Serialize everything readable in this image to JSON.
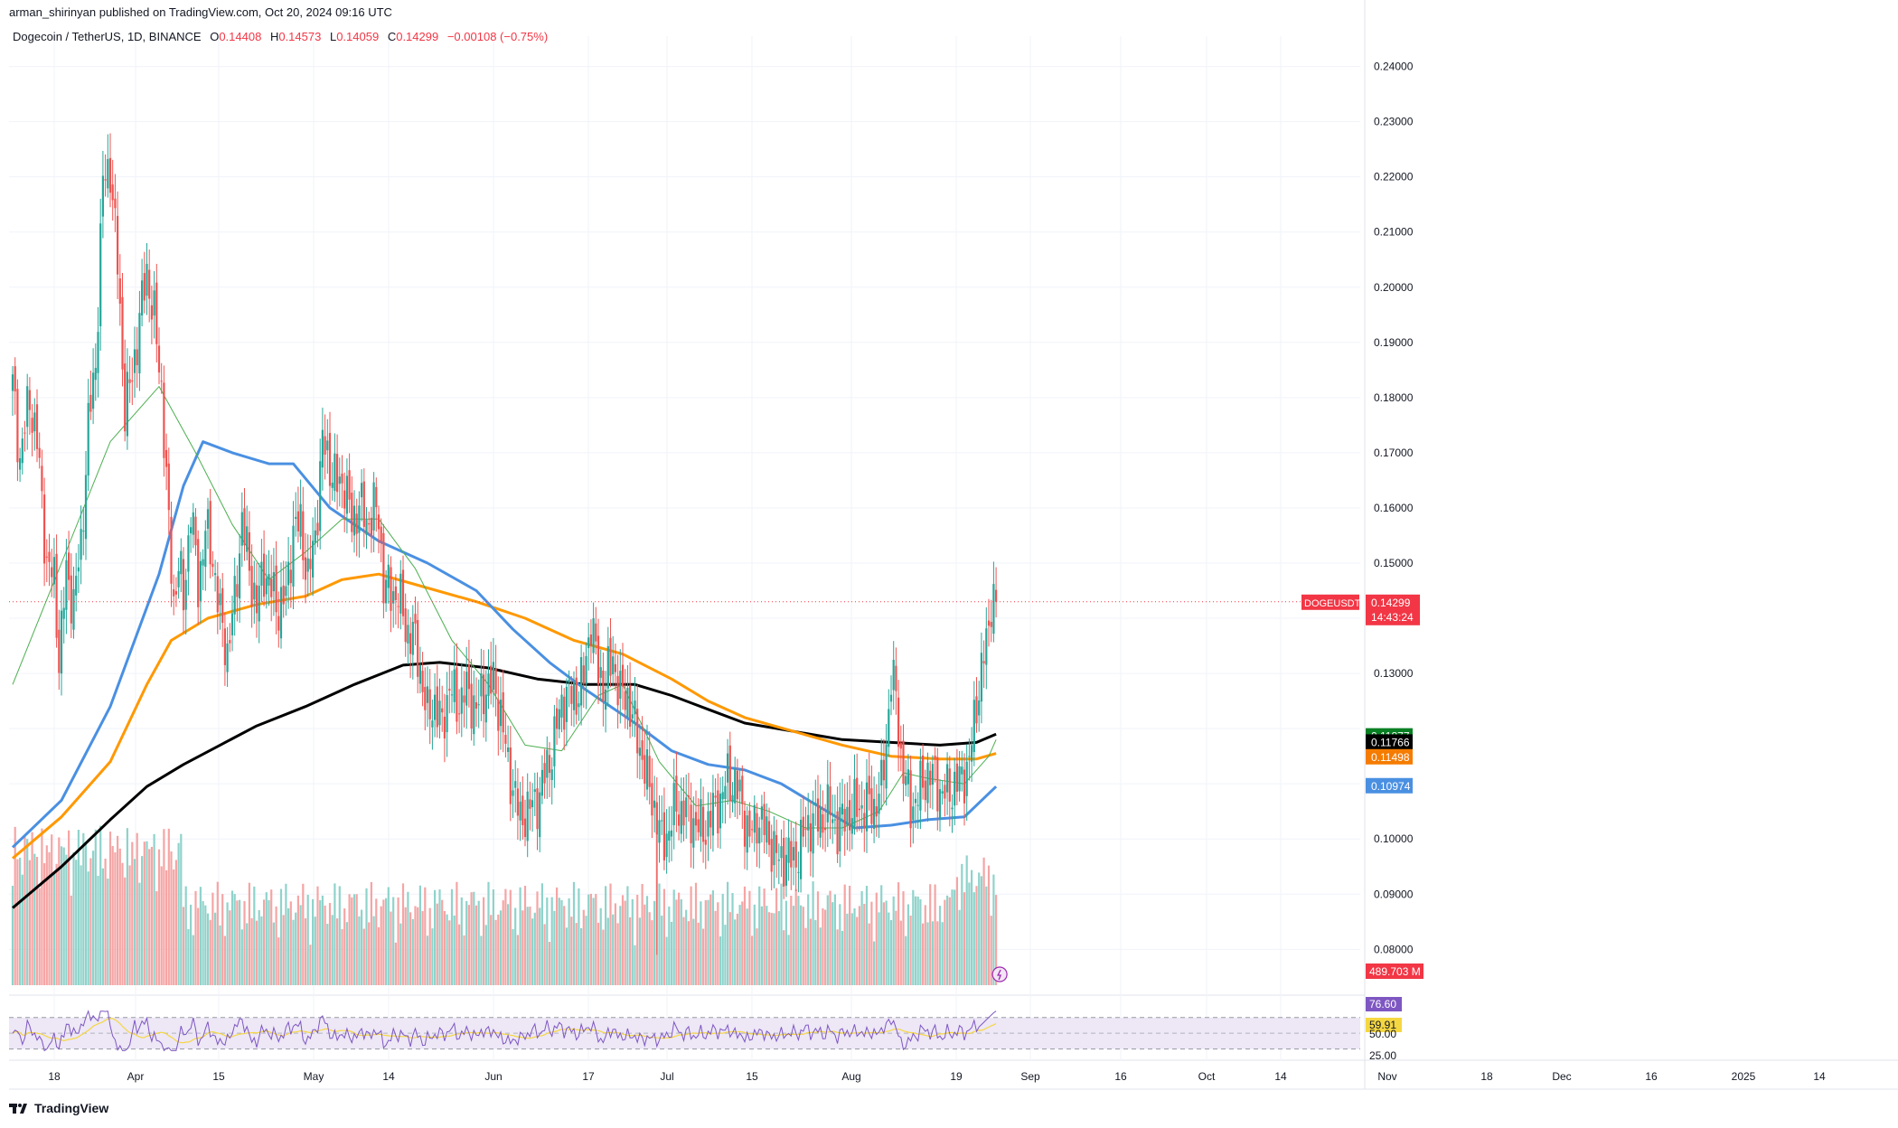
{
  "header": {
    "attribution": "arman_shirinyan published on TradingView.com, Oct 20, 2024 09:16 UTC",
    "symbol": "Dogecoin / TetherUS, 1D, BINANCE",
    "o_label": "O",
    "o_value": "0.14408",
    "h_label": "H",
    "h_value": "0.14573",
    "l_label": "L",
    "l_value": "0.14059",
    "c_label": "C",
    "c_value": "0.14299",
    "change": "−0.00108 (−0.75%)"
  },
  "footer": {
    "logo_text": "TradingView"
  },
  "colors": {
    "up": "#26a69a",
    "down": "#ef5350",
    "vol_up": "#8fd3cb",
    "vol_down": "#f5a5a5",
    "ma_green": "#4caf50",
    "ma_blue": "#4a90e2",
    "ma_orange": "#ff9800",
    "ma_black": "#000000",
    "rsi": "#7e57c2",
    "rsi_ma": "#f5d742",
    "rsi_band": "#ede7f6",
    "last_price": "#f23645"
  },
  "chart_data": {
    "type": "candlestick",
    "y_axis_ticks": [
      "0.24000",
      "0.23000",
      "0.22000",
      "0.21000",
      "0.20000",
      "0.19000",
      "0.18000",
      "0.17000",
      "0.16000",
      "0.15000",
      "0.13000",
      "0.10000",
      "0.09000",
      "0.08000"
    ],
    "x_axis_ticks": [
      "18",
      "Apr",
      "15",
      "May",
      "14",
      "Jun",
      "17",
      "Jul",
      "15",
      "Aug",
      "19",
      "Sep",
      "16",
      "Oct",
      "14",
      "Nov",
      "18",
      "Dec",
      "16",
      "2025",
      "14"
    ],
    "price_labels": [
      {
        "text": "DOGEUSDT",
        "value": "0.14299",
        "sub": "14:43:24",
        "color": "#f23645"
      },
      {
        "text": "",
        "value": "0.11877",
        "color": "#087f23"
      },
      {
        "text": "",
        "value": "0.11766",
        "color": "#000000"
      },
      {
        "text": "",
        "value": "0.11498",
        "color": "#f57c00"
      },
      {
        "text": "",
        "value": "0.10974",
        "color": "#4a90e2"
      }
    ],
    "volume_label": "489.703 M",
    "rsi_labels": [
      "76.60",
      "59.91"
    ],
    "rsi_ticks": [
      "50.00",
      "25.00"
    ],
    "last_price": 0.14299,
    "ylim": [
      0.0735,
      0.2455
    ],
    "anchors": [
      [
        0,
        0.182
      ],
      [
        3,
        0.169
      ],
      [
        7,
        0.18
      ],
      [
        10,
        0.172
      ],
      [
        14,
        0.15
      ],
      [
        17,
        0.147
      ],
      [
        19,
        0.133
      ],
      [
        22,
        0.148
      ],
      [
        25,
        0.143
      ],
      [
        28,
        0.153
      ],
      [
        31,
        0.175
      ],
      [
        34,
        0.186
      ],
      [
        37,
        0.219
      ],
      [
        40,
        0.222
      ],
      [
        43,
        0.204
      ],
      [
        46,
        0.178
      ],
      [
        49,
        0.184
      ],
      [
        52,
        0.194
      ],
      [
        55,
        0.203
      ],
      [
        58,
        0.194
      ],
      [
        61,
        0.182
      ],
      [
        64,
        0.156
      ],
      [
        66,
        0.143
      ],
      [
        68,
        0.15
      ],
      [
        70,
        0.143
      ],
      [
        73,
        0.16
      ],
      [
        76,
        0.146
      ],
      [
        79,
        0.156
      ],
      [
        82,
        0.151
      ],
      [
        85,
        0.14
      ],
      [
        88,
        0.134
      ],
      [
        91,
        0.143
      ],
      [
        94,
        0.158
      ],
      [
        97,
        0.149
      ],
      [
        100,
        0.142
      ],
      [
        103,
        0.149
      ],
      [
        106,
        0.145
      ],
      [
        109,
        0.142
      ],
      [
        112,
        0.144
      ],
      [
        115,
        0.156
      ],
      [
        118,
        0.157
      ],
      [
        121,
        0.147
      ],
      [
        124,
        0.155
      ],
      [
        127,
        0.172
      ],
      [
        130,
        0.168
      ],
      [
        133,
        0.164
      ],
      [
        136,
        0.165
      ],
      [
        139,
        0.157
      ],
      [
        142,
        0.161
      ],
      [
        145,
        0.157
      ],
      [
        148,
        0.16
      ],
      [
        150,
        0.158
      ],
      [
        152,
        0.147
      ],
      [
        155,
        0.144
      ],
      [
        158,
        0.145
      ],
      [
        161,
        0.138
      ],
      [
        164,
        0.137
      ],
      [
        167,
        0.131
      ],
      [
        170,
        0.122
      ],
      [
        173,
        0.125
      ],
      [
        176,
        0.12
      ],
      [
        179,
        0.128
      ],
      [
        182,
        0.124
      ],
      [
        185,
        0.127
      ],
      [
        188,
        0.125
      ],
      [
        191,
        0.124
      ],
      [
        194,
        0.128
      ],
      [
        197,
        0.128
      ],
      [
        200,
        0.123
      ],
      [
        203,
        0.113
      ],
      [
        206,
        0.108
      ],
      [
        208,
        0.103
      ],
      [
        210,
        0.105
      ],
      [
        213,
        0.106
      ],
      [
        216,
        0.108
      ],
      [
        219,
        0.113
      ],
      [
        222,
        0.118
      ],
      [
        225,
        0.125
      ],
      [
        228,
        0.126
      ],
      [
        231,
        0.126
      ],
      [
        234,
        0.129
      ],
      [
        237,
        0.14
      ],
      [
        240,
        0.13
      ],
      [
        243,
        0.128
      ],
      [
        246,
        0.133
      ],
      [
        249,
        0.126
      ],
      [
        252,
        0.126
      ],
      [
        255,
        0.12
      ],
      [
        258,
        0.115
      ],
      [
        261,
        0.109
      ],
      [
        264,
        0.104
      ],
      [
        266,
        0.099
      ],
      [
        269,
        0.102
      ],
      [
        272,
        0.106
      ],
      [
        275,
        0.105
      ],
      [
        278,
        0.104
      ],
      [
        281,
        0.102
      ],
      [
        284,
        0.102
      ],
      [
        287,
        0.105
      ],
      [
        290,
        0.107
      ],
      [
        293,
        0.111
      ],
      [
        296,
        0.11
      ],
      [
        299,
        0.106
      ],
      [
        302,
        0.1
      ],
      [
        305,
        0.104
      ],
      [
        308,
        0.102
      ],
      [
        311,
        0.099
      ],
      [
        314,
        0.096
      ],
      [
        317,
        0.097
      ],
      [
        320,
        0.096
      ],
      [
        323,
        0.099
      ],
      [
        326,
        0.103
      ],
      [
        329,
        0.103
      ],
      [
        332,
        0.104
      ],
      [
        335,
        0.105
      ],
      [
        338,
        0.102
      ],
      [
        341,
        0.104
      ],
      [
        344,
        0.105
      ],
      [
        347,
        0.106
      ],
      [
        350,
        0.106
      ],
      [
        353,
        0.106
      ],
      [
        356,
        0.109
      ],
      [
        358,
        0.118
      ],
      [
        360,
        0.129
      ],
      [
        362,
        0.126
      ],
      [
        364,
        0.115
      ],
      [
        366,
        0.11
      ],
      [
        368,
        0.106
      ],
      [
        370,
        0.107
      ],
      [
        372,
        0.109
      ],
      [
        375,
        0.112
      ],
      [
        378,
        0.111
      ],
      [
        381,
        0.108
      ],
      [
        384,
        0.109
      ],
      [
        387,
        0.11
      ],
      [
        389,
        0.111
      ],
      [
        392,
        0.114
      ],
      [
        394,
        0.121
      ],
      [
        396,
        0.128
      ],
      [
        398,
        0.133
      ],
      [
        400,
        0.138
      ],
      [
        401,
        0.144
      ],
      [
        402,
        0.144
      ],
      [
        403,
        0.143
      ]
    ],
    "ma_green": [
      [
        0,
        0.128
      ],
      [
        20,
        0.15
      ],
      [
        40,
        0.172
      ],
      [
        60,
        0.182
      ],
      [
        75,
        0.17
      ],
      [
        90,
        0.157
      ],
      [
        105,
        0.147
      ],
      [
        120,
        0.152
      ],
      [
        135,
        0.158
      ],
      [
        150,
        0.158
      ],
      [
        165,
        0.149
      ],
      [
        180,
        0.136
      ],
      [
        195,
        0.128
      ],
      [
        210,
        0.117
      ],
      [
        225,
        0.116
      ],
      [
        240,
        0.126
      ],
      [
        250,
        0.128
      ],
      [
        265,
        0.114
      ],
      [
        280,
        0.106
      ],
      [
        295,
        0.107
      ],
      [
        310,
        0.105
      ],
      [
        325,
        0.102
      ],
      [
        340,
        0.102
      ],
      [
        355,
        0.105
      ],
      [
        365,
        0.112
      ],
      [
        375,
        0.111
      ],
      [
        390,
        0.11
      ],
      [
        400,
        0.115
      ],
      [
        403,
        0.118
      ]
    ],
    "ma_blue": [
      [
        0,
        0.0985
      ],
      [
        20,
        0.107
      ],
      [
        40,
        0.124
      ],
      [
        60,
        0.148
      ],
      [
        70,
        0.164
      ],
      [
        78,
        0.172
      ],
      [
        90,
        0.17
      ],
      [
        105,
        0.168
      ],
      [
        115,
        0.168
      ],
      [
        130,
        0.16
      ],
      [
        150,
        0.154
      ],
      [
        170,
        0.15
      ],
      [
        190,
        0.145
      ],
      [
        205,
        0.138
      ],
      [
        220,
        0.132
      ],
      [
        235,
        0.127
      ],
      [
        255,
        0.121
      ],
      [
        270,
        0.116
      ],
      [
        285,
        0.1135
      ],
      [
        300,
        0.1125
      ],
      [
        315,
        0.11
      ],
      [
        330,
        0.106
      ],
      [
        345,
        0.102
      ],
      [
        360,
        0.1025
      ],
      [
        375,
        0.1035
      ],
      [
        390,
        0.104
      ],
      [
        403,
        0.1095
      ]
    ],
    "ma_orange": [
      [
        0,
        0.0965
      ],
      [
        20,
        0.104
      ],
      [
        40,
        0.114
      ],
      [
        55,
        0.128
      ],
      [
        65,
        0.136
      ],
      [
        80,
        0.14
      ],
      [
        100,
        0.1425
      ],
      [
        120,
        0.144
      ],
      [
        135,
        0.147
      ],
      [
        150,
        0.148
      ],
      [
        170,
        0.1455
      ],
      [
        190,
        0.143
      ],
      [
        210,
        0.14
      ],
      [
        230,
        0.136
      ],
      [
        250,
        0.1335
      ],
      [
        270,
        0.129
      ],
      [
        285,
        0.125
      ],
      [
        300,
        0.122
      ],
      [
        320,
        0.1195
      ],
      [
        340,
        0.117
      ],
      [
        360,
        0.115
      ],
      [
        380,
        0.1145
      ],
      [
        395,
        0.1145
      ],
      [
        403,
        0.1155
      ]
    ],
    "ma_black": [
      [
        0,
        0.0875
      ],
      [
        20,
        0.095
      ],
      [
        40,
        0.1035
      ],
      [
        55,
        0.1095
      ],
      [
        70,
        0.1135
      ],
      [
        85,
        0.117
      ],
      [
        100,
        0.1205
      ],
      [
        120,
        0.124
      ],
      [
        140,
        0.128
      ],
      [
        160,
        0.1315
      ],
      [
        175,
        0.132
      ],
      [
        195,
        0.131
      ],
      [
        215,
        0.129
      ],
      [
        235,
        0.128
      ],
      [
        255,
        0.128
      ],
      [
        270,
        0.126
      ],
      [
        285,
        0.1235
      ],
      [
        300,
        0.121
      ],
      [
        320,
        0.1195
      ],
      [
        340,
        0.118
      ],
      [
        360,
        0.1175
      ],
      [
        380,
        0.117
      ],
      [
        395,
        0.1175
      ],
      [
        403,
        0.119
      ]
    ]
  }
}
